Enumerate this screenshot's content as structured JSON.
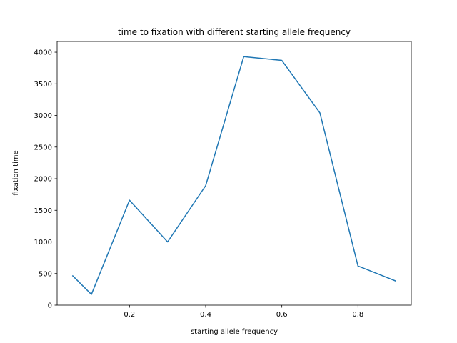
{
  "chart_data": {
    "type": "line",
    "title": "time to fixation with different starting allele frequency",
    "xlabel": "starting allele frequency",
    "ylabel": "fixation time",
    "xlim": [
      0.01,
      0.94
    ],
    "ylim": [
      0,
      4170
    ],
    "xticks": [
      0.2,
      0.4,
      0.6,
      0.8
    ],
    "xtick_labels": [
      "0.2",
      "0.4",
      "0.6",
      "0.8"
    ],
    "yticks": [
      0,
      500,
      1000,
      1500,
      2000,
      2500,
      3000,
      3500,
      4000
    ],
    "ytick_labels": [
      "0",
      "500",
      "1000",
      "1500",
      "2000",
      "2500",
      "3000",
      "3500",
      "4000"
    ],
    "grid": false,
    "series": [
      {
        "color": "#1f77b4",
        "x": [
          0.05,
          0.1,
          0.2,
          0.3,
          0.4,
          0.5,
          0.6,
          0.7,
          0.8,
          0.9
        ],
        "y": [
          470,
          170,
          1660,
          1000,
          1890,
          3930,
          3870,
          3040,
          620,
          380
        ]
      }
    ]
  }
}
